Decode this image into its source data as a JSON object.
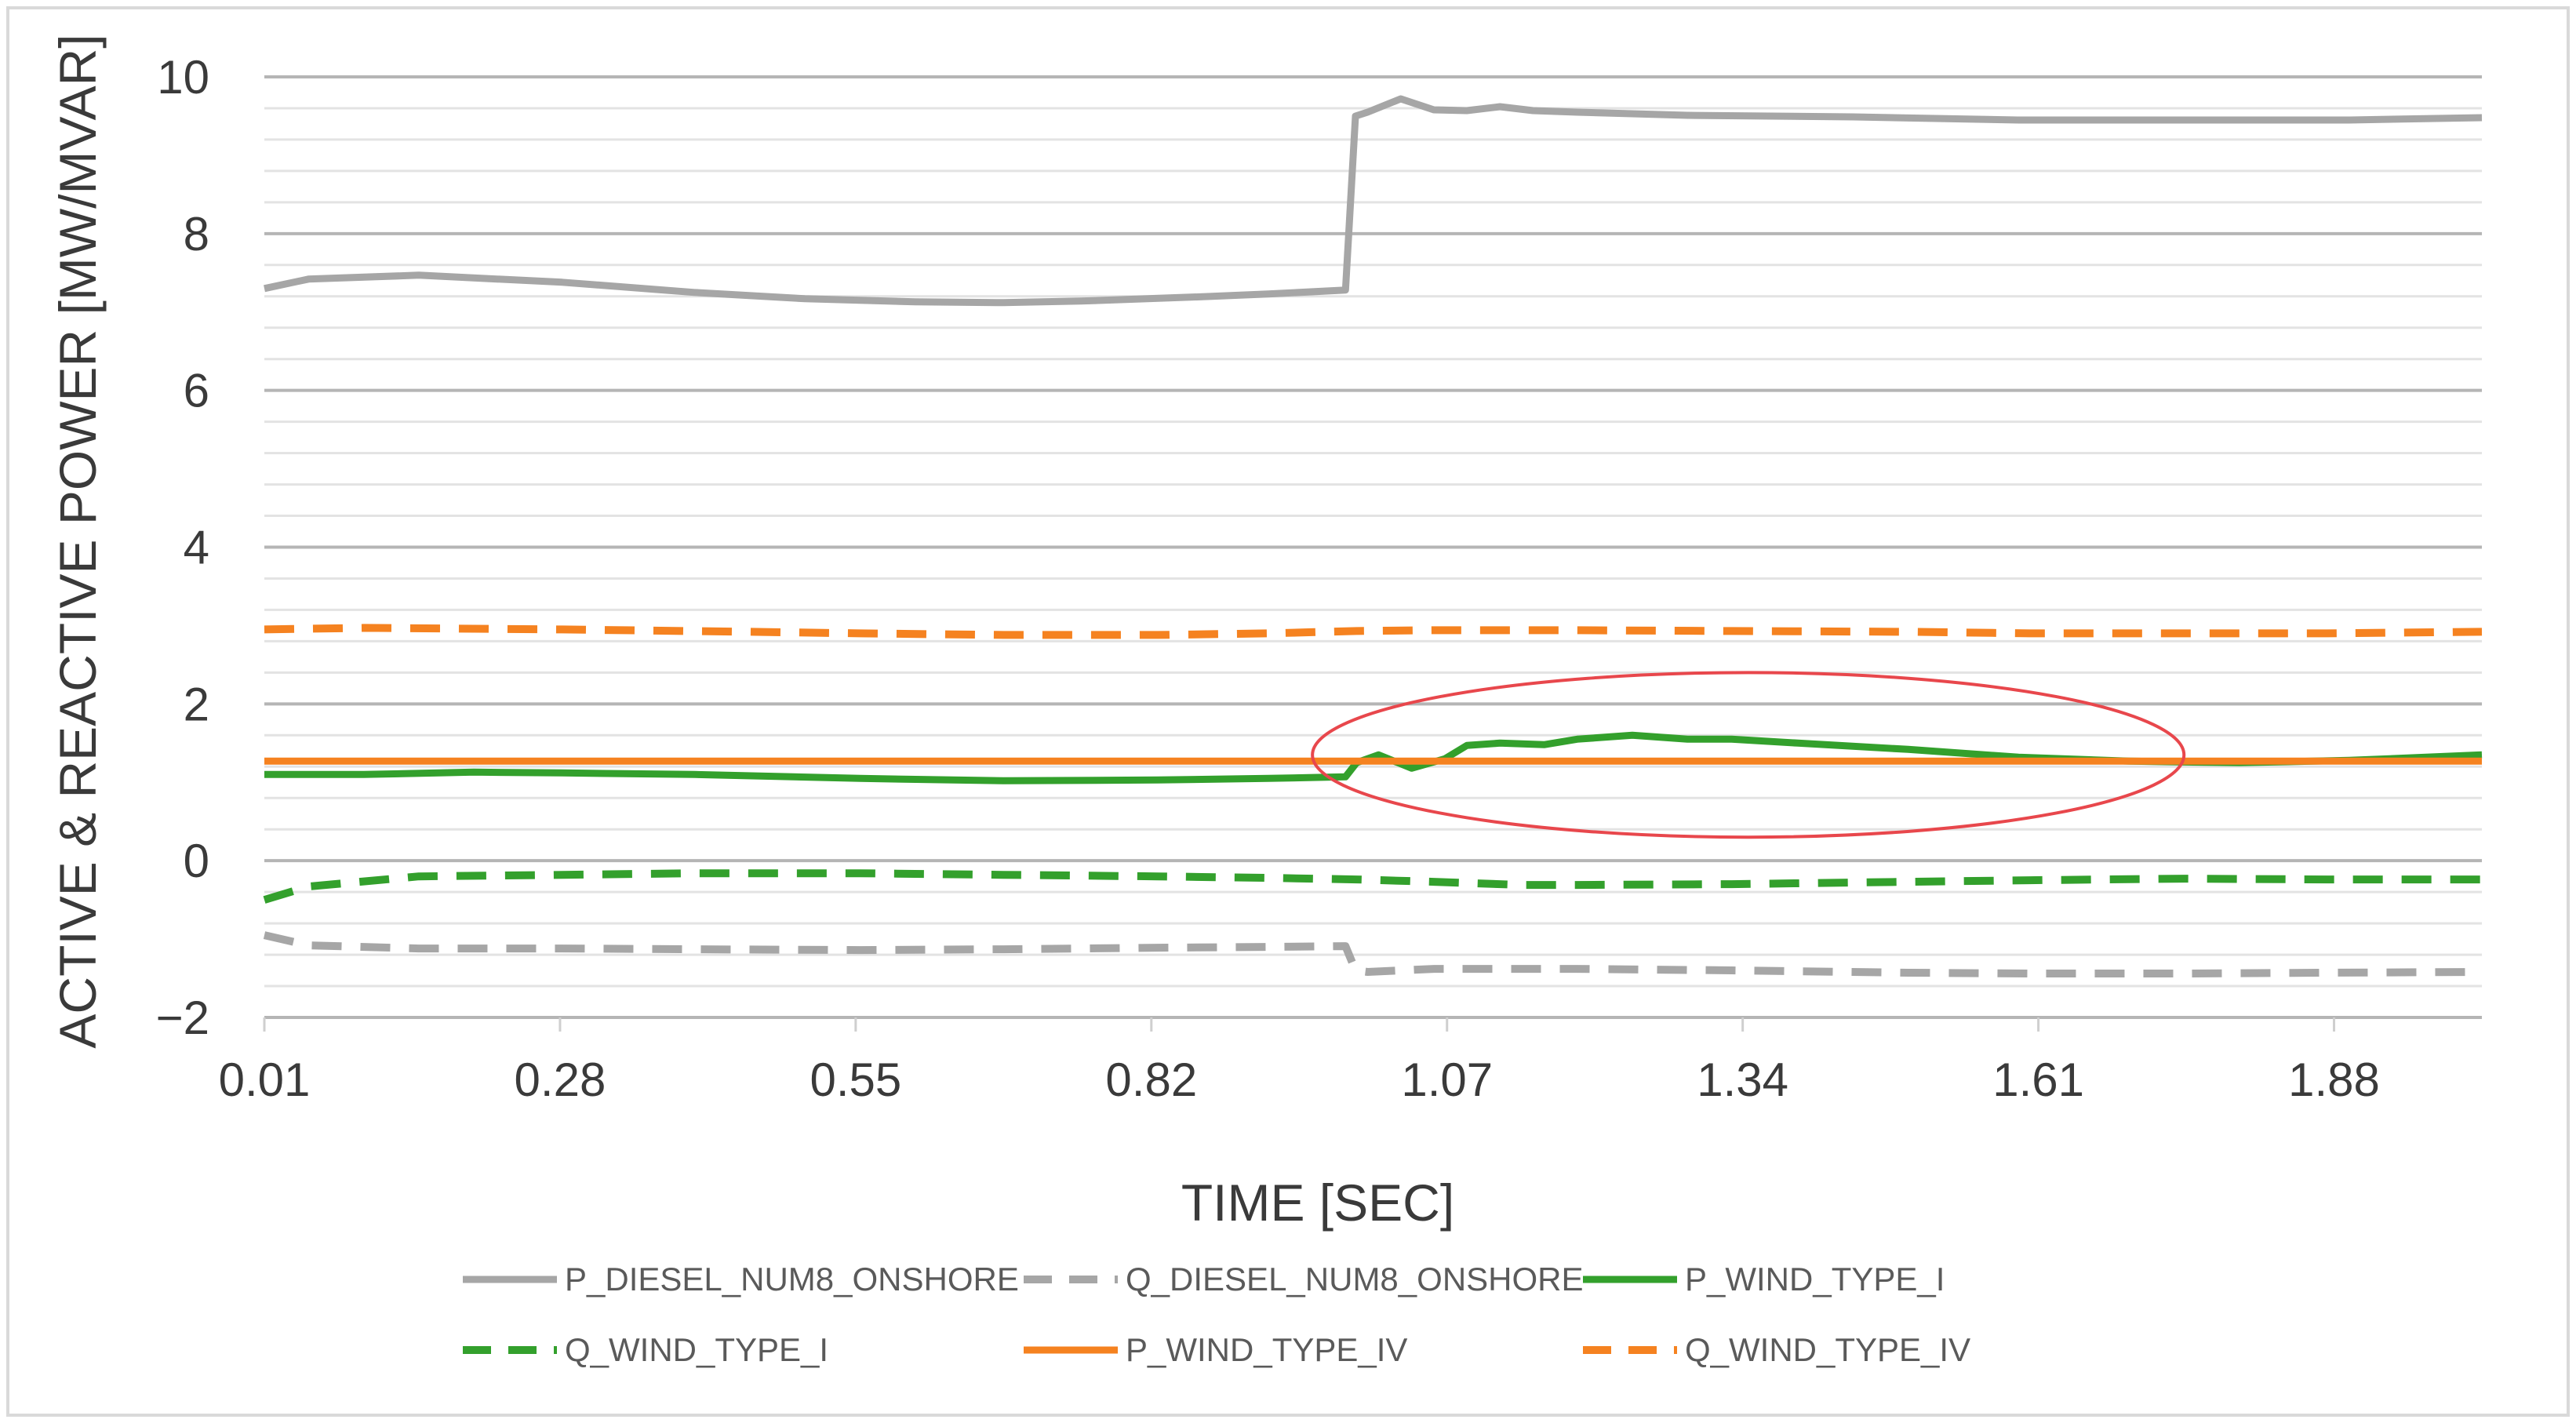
{
  "chart_data": {
    "type": "line",
    "title": "",
    "xlabel": "TIME [SEC]",
    "ylabel": "ACTIVE & REACTIVE POWER [MW/MVAR]",
    "xlim": [
      0.01,
      2.02
    ],
    "ylim": [
      -2,
      10
    ],
    "x_ticks": [
      "0.01",
      "0.28",
      "0.55",
      "0.82",
      "1.07",
      "1.34",
      "1.61",
      "1.88"
    ],
    "y_ticks": [
      "10",
      "8",
      "6",
      "4",
      "2",
      "0",
      "−2"
    ],
    "grid": true,
    "legend_position": "bottom",
    "series": [
      {
        "name": "P_DIESEL_NUM8_ONSHORE",
        "color": "#a6a6a6",
        "dash": "solid",
        "x": [
          0.01,
          0.05,
          0.15,
          0.28,
          0.4,
          0.5,
          0.6,
          0.68,
          0.75,
          0.85,
          0.92,
          0.99,
          0.999,
          1.01,
          1.04,
          1.07,
          1.1,
          1.13,
          1.16,
          1.2,
          1.3,
          1.45,
          1.6,
          1.75,
          1.9,
          2.02
        ],
        "values": [
          7.3,
          7.42,
          7.47,
          7.38,
          7.25,
          7.17,
          7.13,
          7.12,
          7.14,
          7.19,
          7.23,
          7.28,
          9.5,
          9.55,
          9.72,
          9.58,
          9.57,
          9.62,
          9.57,
          9.55,
          9.51,
          9.49,
          9.45,
          9.45,
          9.45,
          9.48
        ]
      },
      {
        "name": "Q_DIESEL_NUM8_ONSHORE",
        "color": "#a6a6a6",
        "dash": "dashed",
        "x": [
          0.01,
          0.05,
          0.15,
          0.28,
          0.4,
          0.55,
          0.68,
          0.82,
          0.92,
          0.99,
          0.999,
          1.01,
          1.07,
          1.2,
          1.34,
          1.5,
          1.61,
          1.75,
          1.88,
          2.02
        ],
        "values": [
          -0.95,
          -1.08,
          -1.12,
          -1.12,
          -1.13,
          -1.14,
          -1.13,
          -1.11,
          -1.1,
          -1.09,
          -1.4,
          -1.42,
          -1.38,
          -1.38,
          -1.4,
          -1.43,
          -1.44,
          -1.44,
          -1.43,
          -1.42
        ]
      },
      {
        "name": "P_WIND_TYPE_I",
        "color": "#33a02c",
        "dash": "solid",
        "x": [
          0.01,
          0.1,
          0.2,
          0.28,
          0.4,
          0.55,
          0.68,
          0.82,
          0.92,
          0.99,
          1.0,
          1.02,
          1.05,
          1.08,
          1.1,
          1.13,
          1.17,
          1.2,
          1.25,
          1.3,
          1.34,
          1.4,
          1.5,
          1.6,
          1.7,
          1.8,
          1.9,
          2.02
        ],
        "values": [
          1.1,
          1.1,
          1.13,
          1.12,
          1.1,
          1.05,
          1.02,
          1.03,
          1.05,
          1.07,
          1.25,
          1.35,
          1.18,
          1.3,
          1.47,
          1.5,
          1.48,
          1.55,
          1.6,
          1.55,
          1.55,
          1.5,
          1.42,
          1.32,
          1.27,
          1.25,
          1.28,
          1.35
        ]
      },
      {
        "name": "Q_WIND_TYPE_I",
        "color": "#33a02c",
        "dash": "dashed",
        "x": [
          0.01,
          0.05,
          0.15,
          0.28,
          0.4,
          0.55,
          0.68,
          0.82,
          0.92,
          1.0,
          1.07,
          1.15,
          1.2,
          1.34,
          1.5,
          1.61,
          1.75,
          1.88,
          2.02
        ],
        "values": [
          -0.5,
          -0.33,
          -0.2,
          -0.18,
          -0.16,
          -0.16,
          -0.18,
          -0.2,
          -0.22,
          -0.24,
          -0.27,
          -0.31,
          -0.31,
          -0.3,
          -0.27,
          -0.25,
          -0.23,
          -0.24,
          -0.24
        ]
      },
      {
        "name": "P_WIND_TYPE_IV",
        "color": "#f58220",
        "dash": "solid",
        "x": [
          0.01,
          0.5,
          1.0,
          1.5,
          2.02
        ],
        "values": [
          1.27,
          1.27,
          1.27,
          1.27,
          1.27
        ]
      },
      {
        "name": "Q_WIND_TYPE_IV",
        "color": "#f58220",
        "dash": "dashed",
        "x": [
          0.01,
          0.1,
          0.28,
          0.45,
          0.55,
          0.68,
          0.82,
          0.92,
          1.0,
          1.07,
          1.2,
          1.34,
          1.5,
          1.61,
          1.75,
          1.88,
          2.02
        ],
        "values": [
          2.95,
          2.97,
          2.95,
          2.92,
          2.9,
          2.88,
          2.88,
          2.9,
          2.93,
          2.94,
          2.94,
          2.93,
          2.92,
          2.9,
          2.9,
          2.9,
          2.92
        ]
      }
    ],
    "annotations": [
      {
        "type": "ellipse",
        "color": "#e8474c",
        "x_range": [
          0.96,
          1.75
        ],
        "y_range": [
          0.3,
          2.4
        ]
      }
    ]
  }
}
